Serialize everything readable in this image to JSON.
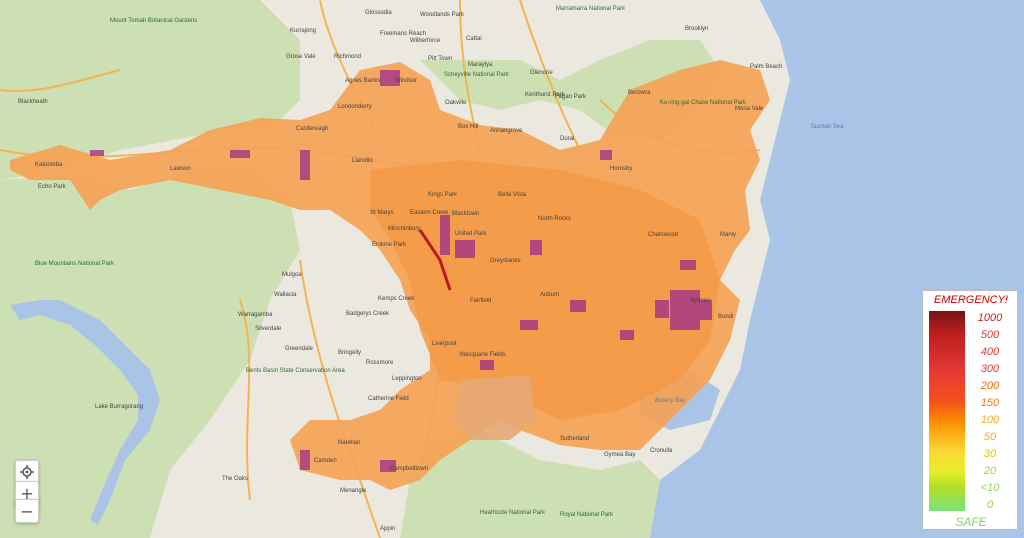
{
  "map": {
    "labels": [
      {
        "text": "Mount Tomah Botanical Gardens",
        "kind": "park"
      },
      {
        "text": "Blackheath",
        "kind": "town"
      },
      {
        "text": "Katoomba",
        "kind": "town"
      },
      {
        "text": "Echo Park",
        "kind": "town"
      },
      {
        "text": "Lawson",
        "kind": "town"
      },
      {
        "text": "Blue Mountains National Park",
        "kind": "park"
      },
      {
        "text": "Kurrajong",
        "kind": "town"
      },
      {
        "text": "Grose Vale",
        "kind": "town"
      },
      {
        "text": "Richmond",
        "kind": "town"
      },
      {
        "text": "Windsor",
        "kind": "town"
      },
      {
        "text": "Agnes Banks",
        "kind": "town"
      },
      {
        "text": "Glossodia",
        "kind": "town"
      },
      {
        "text": "Freemans Reach",
        "kind": "town"
      },
      {
        "text": "Wilberforce",
        "kind": "town"
      },
      {
        "text": "Woodlands Park",
        "kind": "town"
      },
      {
        "text": "Cattai",
        "kind": "town"
      },
      {
        "text": "Pitt Town",
        "kind": "town"
      },
      {
        "text": "Maraylya",
        "kind": "town"
      },
      {
        "text": "Scheyville National Park",
        "kind": "park"
      },
      {
        "text": "Glenorie",
        "kind": "town"
      },
      {
        "text": "Kenthurst Park",
        "kind": "town"
      },
      {
        "text": "Fagan Park",
        "kind": "town"
      },
      {
        "text": "Dural",
        "kind": "town"
      },
      {
        "text": "Box Hill",
        "kind": "town"
      },
      {
        "text": "Annangrove",
        "kind": "town"
      },
      {
        "text": "Oakville",
        "kind": "town"
      },
      {
        "text": "Londonderry",
        "kind": "town"
      },
      {
        "text": "Castlereagh",
        "kind": "town"
      },
      {
        "text": "Llandilo",
        "kind": "town"
      },
      {
        "text": "Kings Park",
        "kind": "town"
      },
      {
        "text": "Bella Vista",
        "kind": "town"
      },
      {
        "text": "St Marys",
        "kind": "town"
      },
      {
        "text": "Blacktown",
        "kind": "town"
      },
      {
        "text": "North Rocks",
        "kind": "town"
      },
      {
        "text": "Eastern Creek",
        "kind": "town"
      },
      {
        "text": "Minchinbury",
        "kind": "town"
      },
      {
        "text": "United Park",
        "kind": "town"
      },
      {
        "text": "Erskine Park",
        "kind": "town"
      },
      {
        "text": "Mulgoa",
        "kind": "town"
      },
      {
        "text": "Wallacia",
        "kind": "town"
      },
      {
        "text": "Warragamba",
        "kind": "town"
      },
      {
        "text": "Silverdale",
        "kind": "town"
      },
      {
        "text": "Kemps Creek",
        "kind": "town"
      },
      {
        "text": "Badgerys Creek",
        "kind": "town"
      },
      {
        "text": "Greendale",
        "kind": "town"
      },
      {
        "text": "Bringelly",
        "kind": "town"
      },
      {
        "text": "Rossmore",
        "kind": "town"
      },
      {
        "text": "Bents Basin State Conservation Area",
        "kind": "park"
      },
      {
        "text": "Leppington",
        "kind": "town"
      },
      {
        "text": "Catherine Field",
        "kind": "town"
      },
      {
        "text": "Narellan",
        "kind": "town"
      },
      {
        "text": "Camden",
        "kind": "town"
      },
      {
        "text": "Campbelltown",
        "kind": "town"
      },
      {
        "text": "The Oaks",
        "kind": "town"
      },
      {
        "text": "Lake Burragorang",
        "kind": "town"
      },
      {
        "text": "Menangle",
        "kind": "town"
      },
      {
        "text": "Appin",
        "kind": "town"
      },
      {
        "text": "Heathcote National Park",
        "kind": "park"
      },
      {
        "text": "Royal National Park",
        "kind": "park"
      },
      {
        "text": "Sutherland",
        "kind": "town"
      },
      {
        "text": "Gymea Bay",
        "kind": "town"
      },
      {
        "text": "Cronulla",
        "kind": "town"
      },
      {
        "text": "Botany Bay",
        "kind": "sea"
      },
      {
        "text": "Auburn",
        "kind": "town"
      },
      {
        "text": "Greystanes",
        "kind": "town"
      },
      {
        "text": "Fairfield",
        "kind": "town"
      },
      {
        "text": "Liverpool",
        "kind": "town"
      },
      {
        "text": "Macquarie Fields",
        "kind": "town"
      },
      {
        "text": "Tasman Sea",
        "kind": "sea"
      },
      {
        "text": "Ku-ring-gai Chase National Park",
        "kind": "park"
      },
      {
        "text": "Marramarra National Park",
        "kind": "park"
      },
      {
        "text": "Brooklyn",
        "kind": "town"
      },
      {
        "text": "Palm Beach",
        "kind": "town"
      },
      {
        "text": "Mona Vale",
        "kind": "town"
      },
      {
        "text": "Berowra",
        "kind": "town"
      },
      {
        "text": "Hornsby",
        "kind": "town"
      },
      {
        "text": "Chatswood",
        "kind": "town"
      },
      {
        "text": "Manly",
        "kind": "town"
      },
      {
        "text": "Sydney",
        "kind": "town"
      },
      {
        "text": "Bondi",
        "kind": "town"
      }
    ]
  },
  "controls": {
    "locate_icon": "target-icon",
    "zoom_in": "+",
    "zoom_out": "−"
  },
  "legend": {
    "title": "EMERGENCY!",
    "values": [
      "1000",
      "500",
      "400",
      "300",
      "200",
      "150",
      "100",
      "50",
      "30",
      "20",
      "<10",
      "0"
    ],
    "value_colors": [
      "#c62828",
      "#e53935",
      "#e53935",
      "#e53935",
      "#ef6c00",
      "#f57c00",
      "#f9a825",
      "#f9a825",
      "#e6c200",
      "#c0ca33",
      "#9ccc65",
      "#8bd35c"
    ],
    "footer": "SAFE",
    "colors": {
      "title": "#d00000",
      "high": "#7a1414",
      "mid": "#f4511e",
      "low": "#7be07a"
    }
  },
  "overlay": {
    "fill_color": "#f6a152",
    "hotspot_color": "#9b2c8a"
  }
}
